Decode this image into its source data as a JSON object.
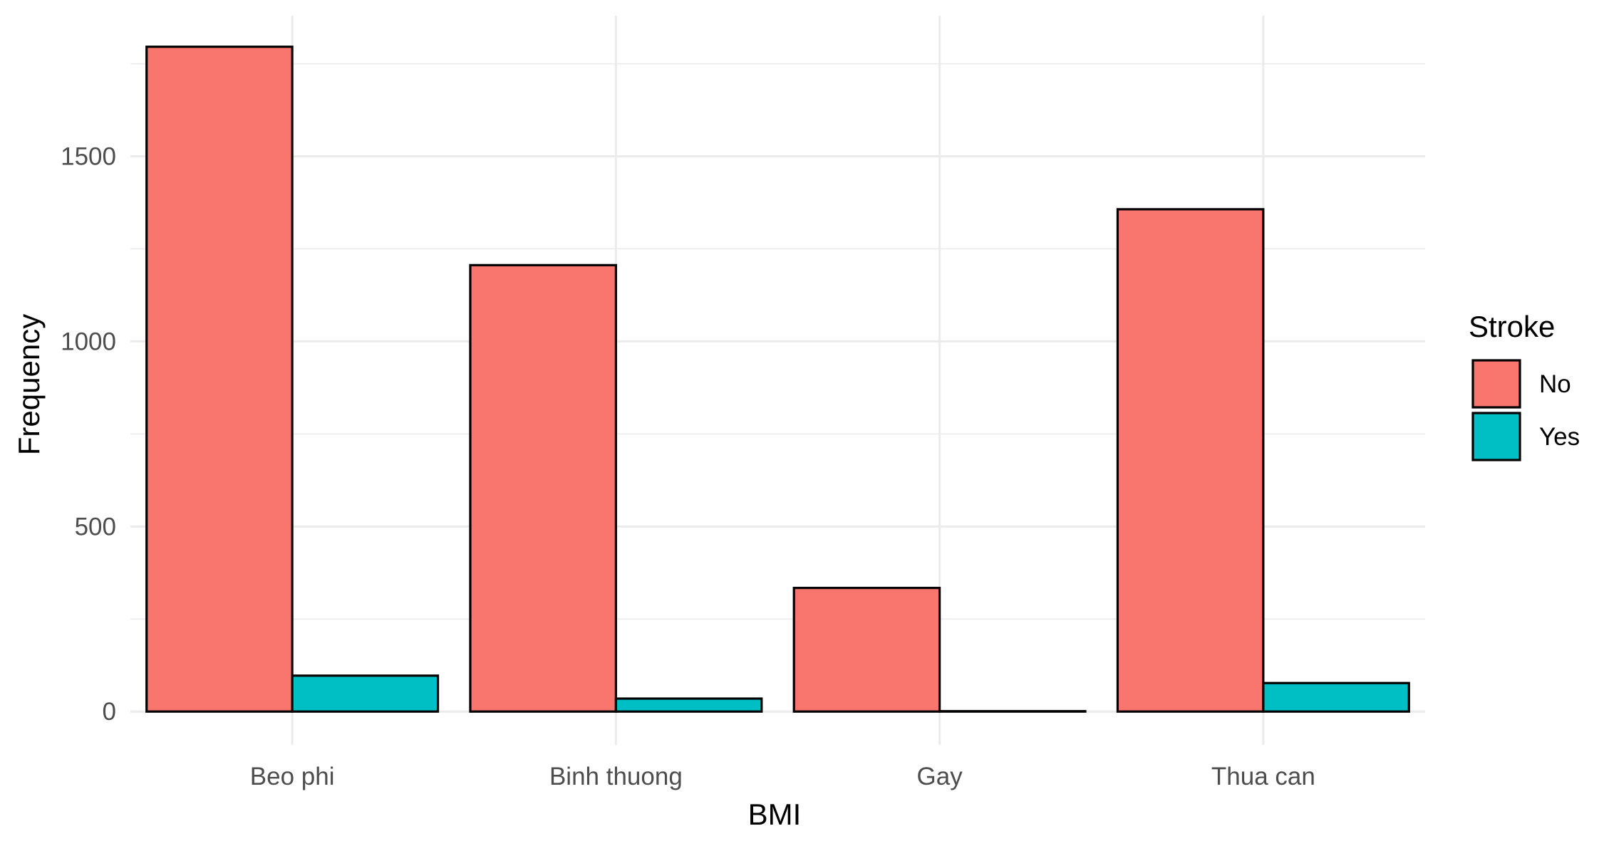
{
  "chart_data": {
    "type": "bar",
    "title": "",
    "xlabel": "BMI",
    "ylabel": "Frequency",
    "categories": [
      "Beo phi",
      "Binh thuong",
      "Gay",
      "Thua can"
    ],
    "series": [
      {
        "name": "No",
        "color": "#F8766D",
        "values": [
          1796,
          1206,
          334,
          1357
        ]
      },
      {
        "name": "Yes",
        "color": "#00BFC4",
        "values": [
          97,
          35,
          1,
          77
        ]
      }
    ],
    "ylim": [
      -90,
      1880
    ],
    "yticks": [
      0,
      500,
      1000,
      1500
    ],
    "grid": true,
    "legend": {
      "title": "Stroke",
      "position": "right",
      "items": [
        "No",
        "Yes"
      ]
    }
  }
}
